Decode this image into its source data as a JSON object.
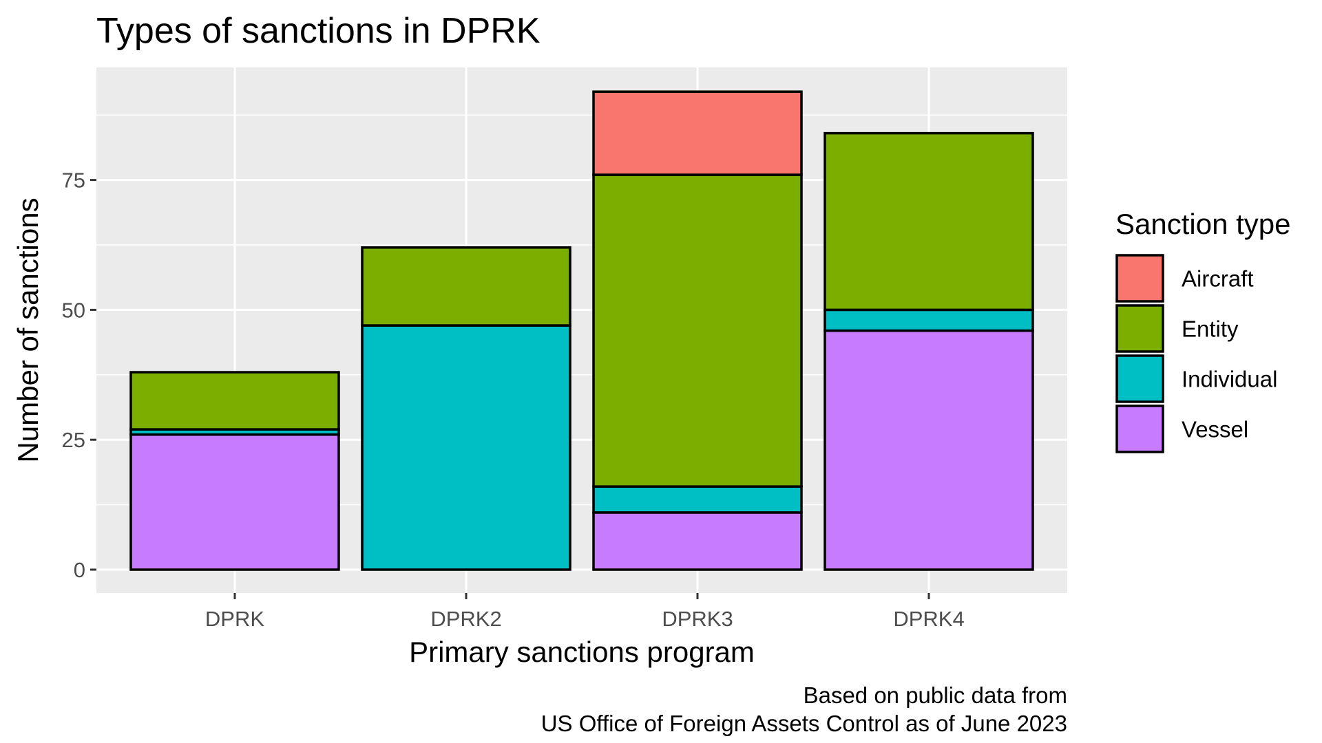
{
  "chart_data": {
    "type": "bar",
    "stacked": true,
    "title": "Types of sanctions in DPRK",
    "xlabel": "Primary sanctions program",
    "ylabel": "Number of sanctions",
    "categories": [
      "DPRK",
      "DPRK2",
      "DPRK3",
      "DPRK4"
    ],
    "y_ticks": [
      0,
      25,
      50,
      75
    ],
    "ylim": [
      0,
      96
    ],
    "grid": true,
    "legend": {
      "title": "Sanction type",
      "placement": "right"
    },
    "series": [
      {
        "name": "Vessel",
        "color": "#C77CFF",
        "values": [
          26,
          0,
          11,
          46
        ]
      },
      {
        "name": "Individual",
        "color": "#00BFC4",
        "values": [
          1,
          47,
          5,
          4
        ]
      },
      {
        "name": "Entity",
        "color": "#7CAE00",
        "values": [
          11,
          15,
          60,
          34
        ]
      },
      {
        "name": "Aircraft",
        "color": "#F8766D",
        "values": [
          0,
          0,
          16,
          0
        ]
      }
    ],
    "legend_order": [
      "Aircraft",
      "Entity",
      "Individual",
      "Vessel"
    ],
    "caption": [
      "Based on public data from",
      "US Office of Foreign Assets Control as of June 2023"
    ]
  }
}
